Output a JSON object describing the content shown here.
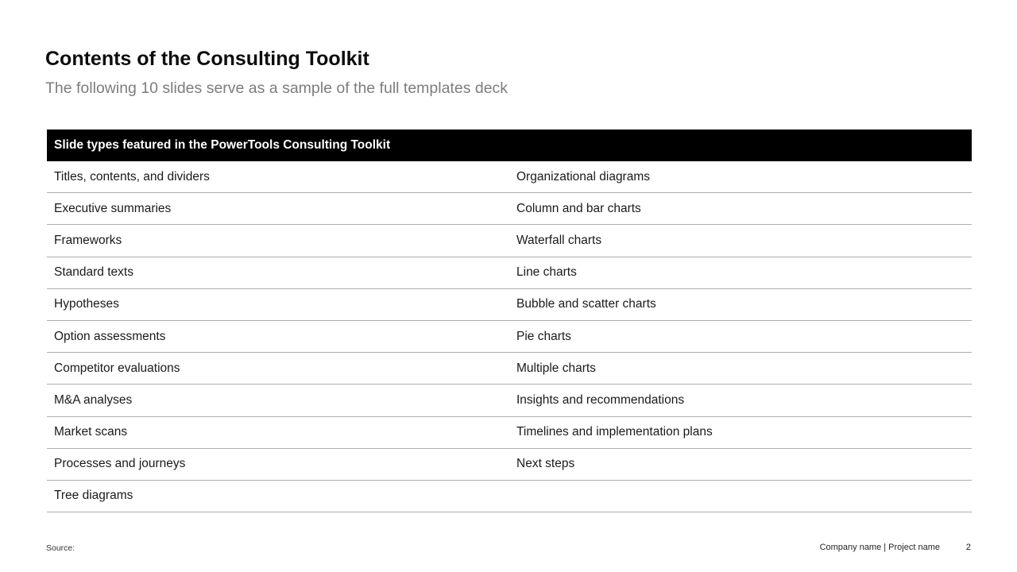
{
  "slide": {
    "title": "Contents of the Consulting Toolkit",
    "subtitle": "The following 10 slides serve as a sample of the full templates deck"
  },
  "table": {
    "header": "Slide types featured in the PowerTools Consulting Toolkit",
    "rows": [
      {
        "left": "Titles, contents, and dividers",
        "right": "Organizational diagrams"
      },
      {
        "left": "Executive summaries",
        "right": "Column and bar charts"
      },
      {
        "left": "Frameworks",
        "right": "Waterfall charts"
      },
      {
        "left": "Standard texts",
        "right": "Line charts"
      },
      {
        "left": "Hypotheses",
        "right": "Bubble and scatter charts"
      },
      {
        "left": "Option assessments",
        "right": "Pie charts"
      },
      {
        "left": "Competitor evaluations",
        "right": "Multiple charts"
      },
      {
        "left": "M&A analyses",
        "right": "Insights and recommendations"
      },
      {
        "left": "Market scans",
        "right": "Timelines and implementation plans"
      },
      {
        "left": "Processes and journeys",
        "right": "Next steps"
      },
      {
        "left": "Tree diagrams",
        "right": ""
      }
    ]
  },
  "footer": {
    "source_label": "Source:",
    "company_project": "Company name | Project name",
    "page_number": "2"
  },
  "colors": {
    "header_bg": "#000000",
    "header_text": "#ffffff",
    "divider": "#adadad",
    "subtitle_text": "#7d7d7d"
  }
}
